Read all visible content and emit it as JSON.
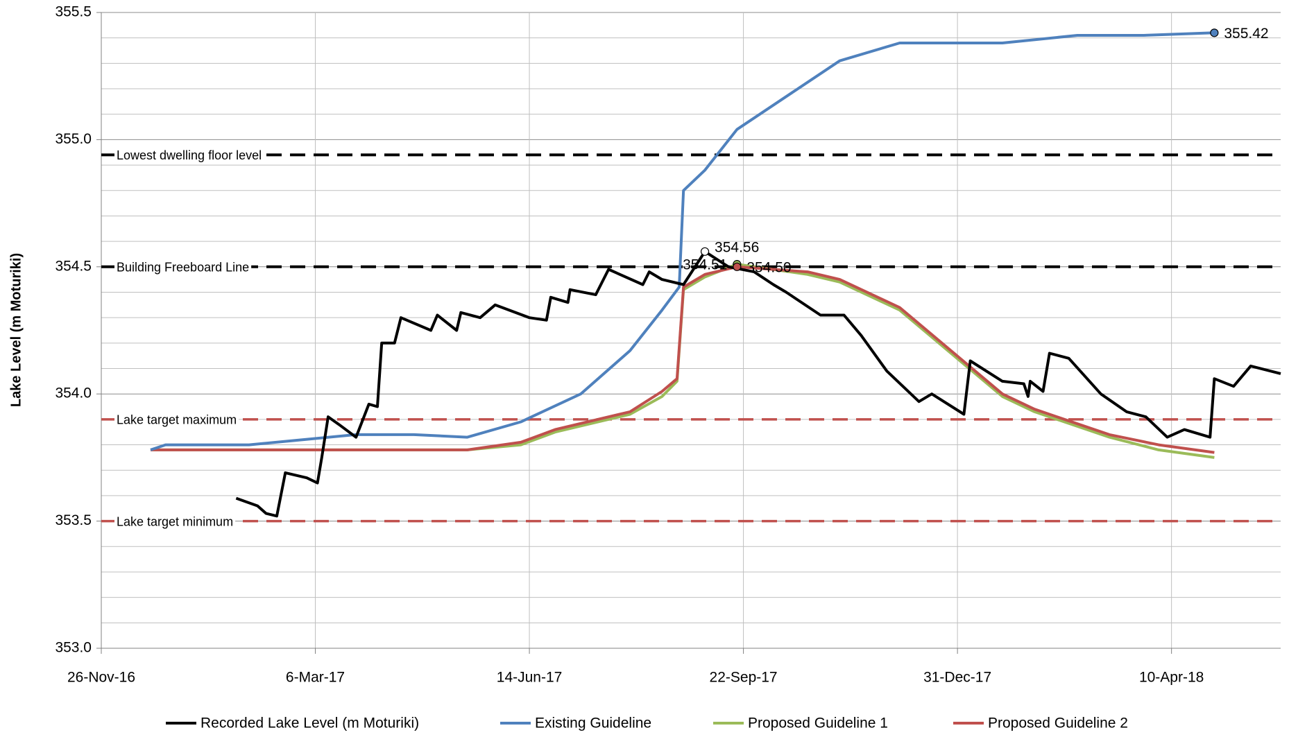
{
  "chart_data": {
    "type": "line",
    "y_label": "Lake Level (m Moturiki)",
    "xlim": [
      "2016-11-26",
      "2018-05-31"
    ],
    "xticks": [
      {
        "value": "2016-11-26",
        "label": "26-Nov-16"
      },
      {
        "value": "2017-03-06",
        "label": "6-Mar-17"
      },
      {
        "value": "2017-06-14",
        "label": "14-Jun-17"
      },
      {
        "value": "2017-09-22",
        "label": "22-Sep-17"
      },
      {
        "value": "2017-12-31",
        "label": "31-Dec-17"
      },
      {
        "value": "2018-04-10",
        "label": "10-Apr-18"
      }
    ],
    "ylim": [
      353.0,
      355.5
    ],
    "yticks": [
      {
        "value": 353.0,
        "label": "353.0"
      },
      {
        "value": 353.5,
        "label": "353.5"
      },
      {
        "value": 354.0,
        "label": "354.0"
      },
      {
        "value": 354.5,
        "label": "354.5"
      },
      {
        "value": 355.0,
        "label": "355.0"
      },
      {
        "value": 355.5,
        "label": "355.5"
      }
    ],
    "y_minor_grid": [
      353.1,
      353.2,
      353.3,
      353.4,
      353.6,
      353.7,
      353.8,
      353.9,
      354.1,
      354.2,
      354.3,
      354.4,
      354.6,
      354.7,
      354.8,
      354.9,
      355.1,
      355.2,
      355.3,
      355.4
    ],
    "grid": true,
    "reference_lines": [
      {
        "label": "Lowest dwelling floor level",
        "value": 354.94,
        "color": "#000000"
      },
      {
        "label": "Building Freeboard Line",
        "value": 354.5,
        "color": "#000000"
      },
      {
        "label": "Lake target maximum",
        "value": 353.9,
        "color": "#c0504d"
      },
      {
        "label": "Lake target minimum",
        "value": 353.5,
        "color": "#c0504d"
      }
    ],
    "series": [
      {
        "name": "Recorded Lake Level (m Moturiki)",
        "color": "#000000",
        "x": [
          "2017-01-28",
          "2017-02-07",
          "2017-02-11",
          "2017-02-16",
          "2017-02-20",
          "2017-03-02",
          "2017-03-07",
          "2017-03-09",
          "2017-03-12",
          "2017-03-17",
          "2017-03-25",
          "2017-03-31",
          "2017-04-04",
          "2017-04-06",
          "2017-04-12",
          "2017-04-15",
          "2017-04-29",
          "2017-05-02",
          "2017-05-11",
          "2017-05-13",
          "2017-05-22",
          "2017-05-29",
          "2017-06-14",
          "2017-06-22",
          "2017-06-24",
          "2017-07-02",
          "2017-07-03",
          "2017-07-15",
          "2017-07-21",
          "2017-08-06",
          "2017-08-09",
          "2017-08-15",
          "2017-08-25",
          "2017-09-04",
          "2017-09-15",
          "2017-09-27",
          "2017-10-06",
          "2017-10-12",
          "2017-10-28",
          "2017-11-08",
          "2017-11-16",
          "2017-11-28",
          "2017-12-13",
          "2017-12-19",
          "2018-01-03",
          "2018-01-06",
          "2018-01-21",
          "2018-01-31",
          "2018-02-02",
          "2018-02-03",
          "2018-02-09",
          "2018-02-12",
          "2018-02-21",
          "2018-03-08",
          "2018-03-20",
          "2018-03-29",
          "2018-04-08",
          "2018-04-16",
          "2018-04-28",
          "2018-04-30",
          "2018-05-09",
          "2018-05-17",
          "2018-05-31"
        ],
        "values": [
          353.59,
          353.56,
          353.53,
          353.52,
          353.69,
          353.67,
          353.65,
          353.75,
          353.91,
          353.88,
          353.83,
          353.96,
          353.95,
          354.2,
          354.2,
          354.3,
          354.25,
          354.31,
          354.25,
          354.32,
          354.3,
          354.35,
          354.3,
          354.29,
          354.38,
          354.36,
          354.41,
          354.39,
          354.49,
          354.43,
          354.48,
          354.45,
          354.43,
          354.56,
          354.5,
          354.48,
          354.43,
          354.4,
          354.31,
          354.31,
          354.23,
          354.09,
          353.97,
          354.0,
          353.92,
          354.13,
          354.05,
          354.04,
          353.99,
          354.05,
          354.01,
          354.16,
          354.14,
          354.0,
          353.93,
          353.91,
          353.83,
          353.86,
          353.83,
          354.06,
          354.03,
          354.11,
          354.08
        ]
      },
      {
        "name": "Existing Guideline",
        "color": "#4f81bd",
        "x": [
          "2016-12-19",
          "2016-12-26",
          "2017-02-03",
          "2017-03-25",
          "2017-04-21",
          "2017-05-16",
          "2017-06-10",
          "2017-07-08",
          "2017-07-31",
          "2017-08-15",
          "2017-08-23",
          "2017-08-25",
          "2017-09-04",
          "2017-09-19",
          "2017-11-06",
          "2017-12-04",
          "2018-01-21",
          "2018-02-25",
          "2018-03-28",
          "2018-04-30"
        ],
        "values": [
          353.78,
          353.8,
          353.8,
          353.84,
          353.84,
          353.83,
          353.89,
          354.0,
          354.17,
          354.33,
          354.42,
          354.8,
          354.88,
          355.04,
          355.31,
          355.38,
          355.38,
          355.41,
          355.41,
          355.42
        ]
      },
      {
        "name": "Proposed Guideline 1",
        "color": "#9bbb59",
        "x": [
          "2016-12-19",
          "2017-05-16",
          "2017-06-10",
          "2017-06-26",
          "2017-07-31",
          "2017-08-15",
          "2017-08-22",
          "2017-08-25",
          "2017-09-04",
          "2017-09-19",
          "2017-10-22",
          "2017-11-06",
          "2017-12-04",
          "2018-01-21",
          "2018-02-05",
          "2018-03-12",
          "2018-04-04",
          "2018-04-30"
        ],
        "values": [
          353.78,
          353.78,
          353.8,
          353.85,
          353.92,
          353.99,
          354.05,
          354.41,
          354.46,
          354.51,
          354.47,
          354.44,
          354.33,
          353.99,
          353.93,
          353.83,
          353.78,
          353.75
        ]
      },
      {
        "name": "Proposed Guideline 2",
        "color": "#c0504d",
        "x": [
          "2016-12-19",
          "2017-05-16",
          "2017-06-10",
          "2017-06-26",
          "2017-07-31",
          "2017-08-15",
          "2017-08-22",
          "2017-08-25",
          "2017-09-04",
          "2017-09-19",
          "2017-10-22",
          "2017-11-06",
          "2017-12-04",
          "2018-01-21",
          "2018-02-05",
          "2018-03-12",
          "2018-04-04",
          "2018-04-30"
        ],
        "values": [
          353.78,
          353.78,
          353.81,
          353.86,
          353.93,
          354.01,
          354.06,
          354.42,
          354.47,
          354.5,
          354.48,
          354.45,
          354.34,
          354.0,
          353.94,
          353.84,
          353.8,
          353.77
        ]
      }
    ],
    "point_labels": [
      {
        "label": "355.42",
        "x": "2018-04-30",
        "value": 355.42,
        "color": "#4f81bd",
        "side": "right"
      },
      {
        "label": "354.56",
        "x": "2017-09-04",
        "value": 354.56,
        "color": "#ffffff",
        "side": "right-up"
      },
      {
        "label": "354.51",
        "x": "2017-09-19",
        "value": 354.51,
        "color": "#9bbb59",
        "side": "left"
      },
      {
        "label": "354.50",
        "x": "2017-09-19",
        "value": 354.5,
        "color": "#c0504d",
        "side": "right"
      }
    ]
  }
}
